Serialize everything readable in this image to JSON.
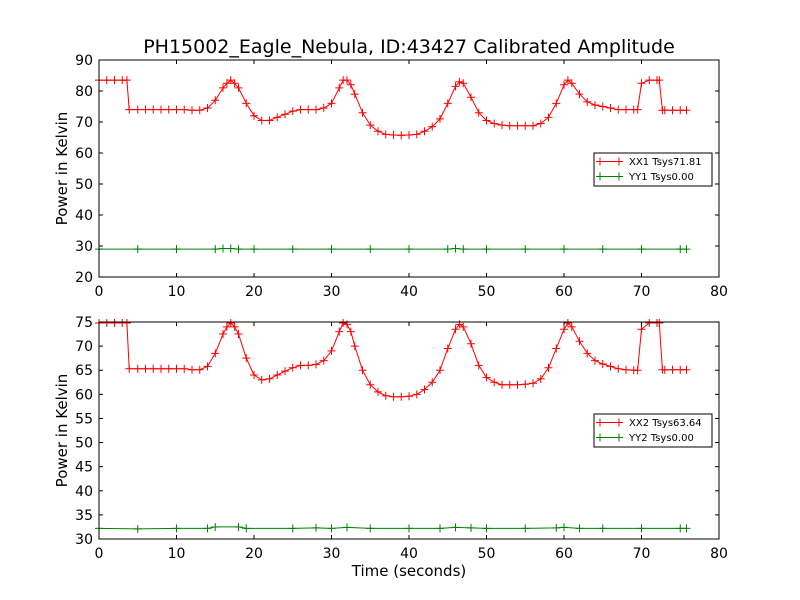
{
  "title": "PH15002_Eagle_Nebula, ID:43427 Calibrated Amplitude",
  "chart_data": [
    {
      "type": "line",
      "ylabel": "Power in Kelvin",
      "xlabel": "",
      "xlim": [
        0,
        80
      ],
      "ylim": [
        20,
        90
      ],
      "xticks": [
        0,
        10,
        20,
        30,
        40,
        50,
        60,
        70,
        80
      ],
      "yticks": [
        20,
        30,
        40,
        50,
        60,
        70,
        80,
        90
      ],
      "legend": "center-right",
      "grid": false,
      "series": [
        {
          "name": "XX1 Tsys71.81",
          "color": "#ff0000",
          "x": [
            0,
            1,
            2,
            3,
            3.6,
            3.9,
            5,
            6,
            7,
            8,
            9,
            10,
            11,
            12,
            13,
            14,
            15,
            16,
            16.5,
            17,
            17.5,
            18,
            19,
            20,
            21,
            22,
            23,
            24,
            25,
            26,
            27,
            28,
            29,
            30,
            31,
            31.5,
            32,
            32.5,
            33,
            34,
            35,
            36,
            37,
            38,
            39,
            40,
            41,
            42,
            43,
            44,
            45,
            46,
            46.5,
            47,
            48,
            49,
            50,
            51,
            52,
            53,
            54,
            55,
            56,
            57,
            58,
            59,
            60,
            60.5,
            61,
            62,
            63,
            64,
            65,
            66,
            67,
            68,
            69,
            69.5,
            70,
            71,
            72,
            72.3,
            72.7,
            73,
            74,
            75,
            75.8
          ],
          "y": [
            83.5,
            83.5,
            83.5,
            83.5,
            83.5,
            74,
            74,
            74,
            74,
            74,
            74,
            74,
            74,
            73.8,
            73.8,
            74.5,
            77,
            81,
            82.5,
            83.5,
            82.5,
            81,
            76,
            72,
            70.5,
            70.5,
            71.5,
            72.5,
            73.5,
            74,
            74,
            74,
            74.5,
            76,
            81,
            83.5,
            83.5,
            82,
            79,
            73,
            69,
            67,
            66,
            65.8,
            65.7,
            65.8,
            66,
            67,
            68.5,
            71,
            76,
            81.5,
            83,
            82.5,
            78,
            73,
            70.5,
            69.5,
            69,
            68.8,
            68.8,
            68.8,
            68.8,
            69.5,
            71.5,
            76,
            82,
            83.5,
            82.5,
            79,
            76.5,
            75.5,
            75,
            74.5,
            74,
            74,
            74,
            74,
            82.5,
            83.5,
            83.5,
            83.5,
            73.8,
            73.8,
            73.8,
            73.8,
            73.8
          ]
        },
        {
          "name": "YY1 Tsys0.00",
          "color": "#008000",
          "x": [
            0,
            5,
            10,
            15,
            16,
            17,
            18,
            20,
            25,
            30,
            35,
            40,
            45,
            46,
            47,
            50,
            55,
            60,
            65,
            70,
            75,
            75.8
          ],
          "y": [
            29,
            29,
            29,
            29,
            29.2,
            29.2,
            29,
            29,
            29,
            29,
            29,
            29,
            29,
            29.2,
            29,
            29,
            29,
            29,
            29,
            29,
            29,
            29
          ]
        }
      ]
    },
    {
      "type": "line",
      "ylabel": "Power in Kelvin",
      "xlabel": "Time (seconds)",
      "xlim": [
        0,
        80
      ],
      "ylim": [
        30,
        75
      ],
      "xticks": [
        0,
        10,
        20,
        30,
        40,
        50,
        60,
        70,
        80
      ],
      "yticks": [
        30,
        35,
        40,
        45,
        50,
        55,
        60,
        65,
        70,
        75
      ],
      "legend": "center-right",
      "grid": false,
      "series": [
        {
          "name": "XX2 Tsys63.64",
          "color": "#ff0000",
          "x": [
            0,
            1,
            2,
            3,
            3.6,
            3.9,
            5,
            6,
            7,
            8,
            9,
            10,
            11,
            12,
            13,
            14,
            15,
            16,
            16.5,
            17,
            17.5,
            18,
            19,
            20,
            21,
            22,
            23,
            24,
            25,
            26,
            27,
            28,
            29,
            30,
            31,
            31.5,
            32,
            32.5,
            33,
            34,
            35,
            36,
            37,
            38,
            39,
            40,
            41,
            42,
            43,
            44,
            45,
            46,
            46.5,
            47,
            48,
            49,
            50,
            51,
            52,
            53,
            54,
            55,
            56,
            57,
            58,
            59,
            60,
            60.5,
            61,
            62,
            63,
            64,
            65,
            66,
            67,
            68,
            69,
            69.5,
            70,
            71,
            72,
            72.3,
            72.7,
            73,
            74,
            75,
            75.8
          ],
          "y": [
            74.8,
            74.8,
            74.8,
            74.8,
            74.8,
            65.3,
            65.3,
            65.3,
            65.3,
            65.3,
            65.3,
            65.3,
            65.3,
            65.1,
            65.1,
            65.8,
            68.5,
            72.5,
            74,
            74.8,
            74,
            72.5,
            67.5,
            64,
            63,
            63.2,
            64,
            64.8,
            65.5,
            66,
            66,
            66.2,
            67,
            69,
            73,
            74.8,
            74.5,
            73,
            70,
            65,
            62,
            60.5,
            59.7,
            59.5,
            59.5,
            59.6,
            60,
            61,
            62.5,
            65,
            69.5,
            73.5,
            74.5,
            74,
            70.5,
            66,
            63.5,
            62.5,
            62,
            62,
            62,
            62.1,
            62.3,
            63.2,
            65.5,
            69.5,
            73.5,
            74.8,
            74,
            71,
            68.5,
            67,
            66.3,
            65.8,
            65.3,
            65.1,
            65,
            65,
            73.5,
            74.8,
            74.8,
            74.8,
            65.1,
            65.1,
            65.1,
            65.1,
            65.1
          ]
        },
        {
          "name": "YY2 Tsys0.00",
          "color": "#008000",
          "x": [
            0,
            5,
            10,
            14,
            15,
            18,
            19,
            25,
            28,
            30,
            32,
            35,
            40,
            44,
            46,
            48,
            50,
            55,
            59,
            60,
            62,
            65,
            70,
            75,
            75.8
          ],
          "y": [
            32.2,
            32.1,
            32.2,
            32.2,
            32.5,
            32.5,
            32.2,
            32.2,
            32.3,
            32.2,
            32.4,
            32.2,
            32.2,
            32.2,
            32.4,
            32.3,
            32.2,
            32.2,
            32.3,
            32.4,
            32.2,
            32.2,
            32.2,
            32.2,
            32.2
          ]
        }
      ]
    }
  ]
}
